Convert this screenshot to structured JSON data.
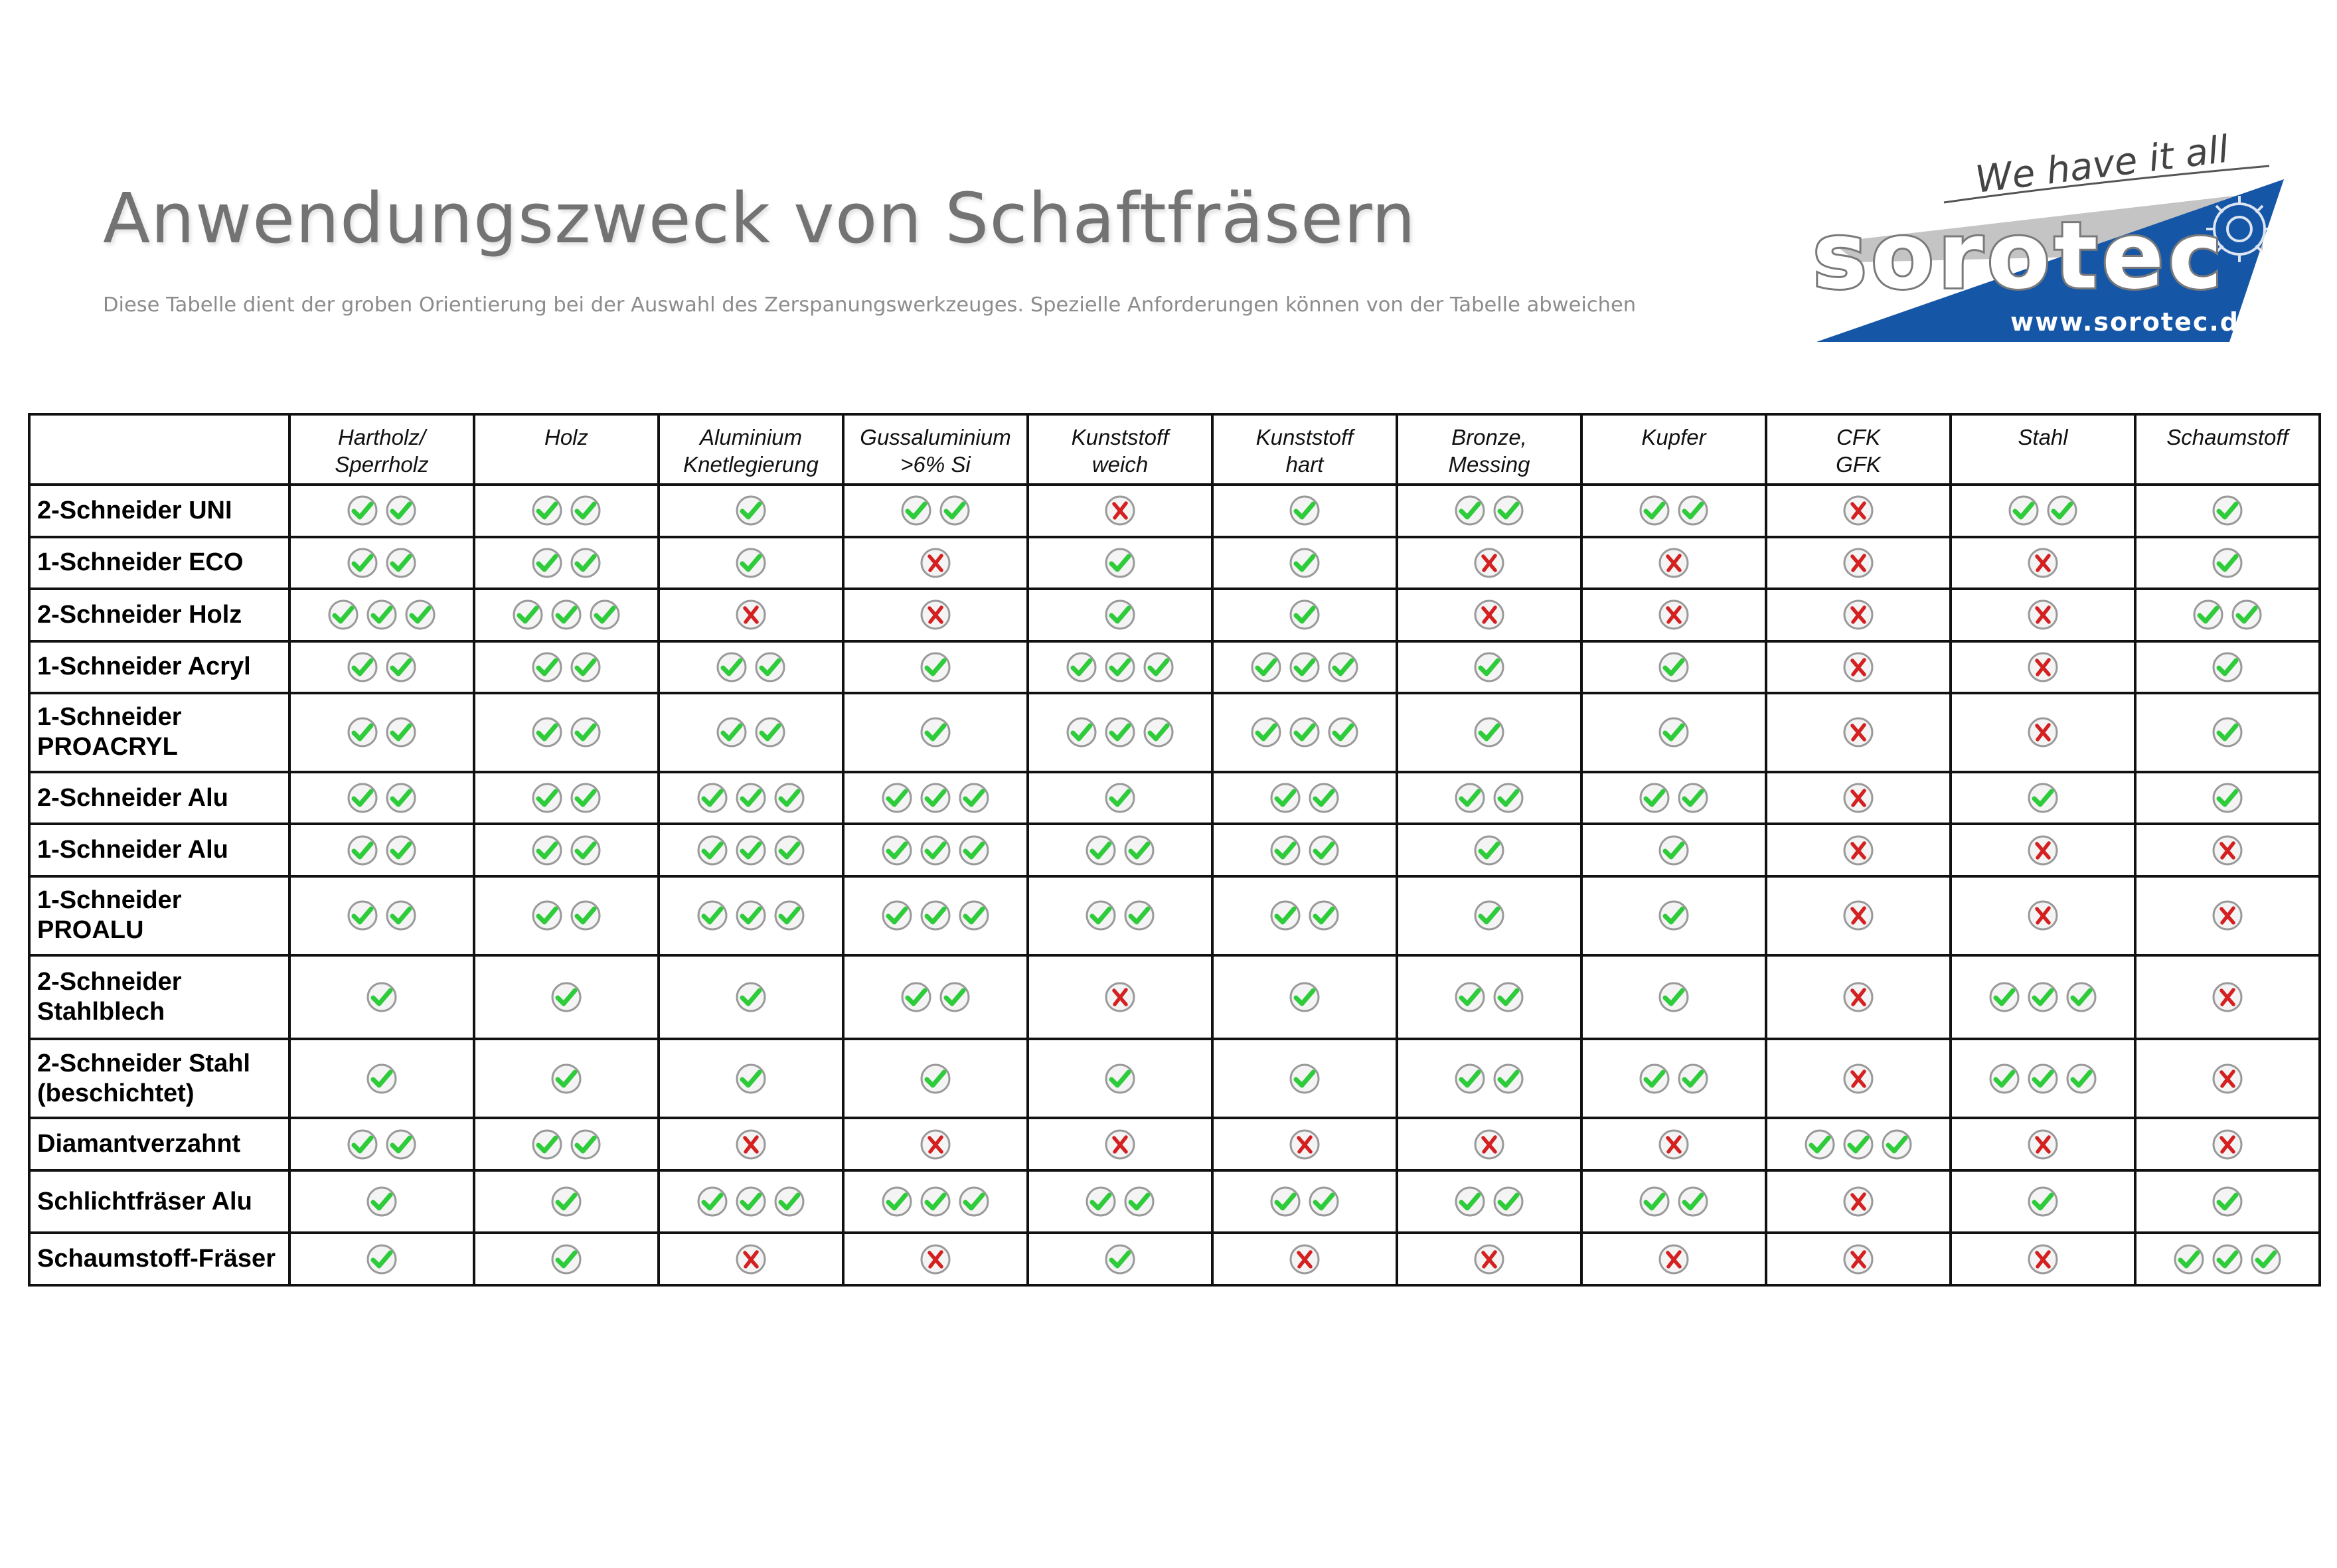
{
  "header": {
    "title": "Anwendungszweck von Schaftfräsern",
    "subtitle": "Diese Tabelle dient der groben Orientierung bei der Auswahl des Zerspanungswerkzeuges. Spezielle Anforderungen können von der Tabelle abweichen"
  },
  "logo": {
    "slogan": "We have it all",
    "brand": "sorotec",
    "url": "www.sorotec.de",
    "colors": {
      "blue": "#1656a6",
      "gray": "#bdbdbd"
    }
  },
  "colors": {
    "check": "#2ecc3a",
    "cross": "#d42020",
    "icon_ring": "#9a9a9a",
    "border": "#111111"
  },
  "table": {
    "columns": [
      "Hartholz/\nSperrholz",
      "Holz",
      "Aluminium\nKnetlegierung",
      "Gussaluminium\n>6% Si",
      "Kunststoff\nweich",
      "Kunststoff\nhart",
      "Bronze,\nMessing",
      "Kupfer",
      "CFK\nGFK",
      "Stahl",
      "Schaumstoff"
    ],
    "rows": [
      {
        "label": "2-Schneider UNI",
        "ratings": [
          2,
          2,
          1,
          2,
          0,
          1,
          2,
          2,
          0,
          2,
          1
        ]
      },
      {
        "label": "1-Schneider ECO",
        "ratings": [
          2,
          2,
          1,
          0,
          1,
          1,
          0,
          0,
          0,
          0,
          1
        ]
      },
      {
        "label": "2-Schneider Holz",
        "ratings": [
          3,
          3,
          0,
          0,
          1,
          1,
          0,
          0,
          0,
          0,
          2
        ]
      },
      {
        "label": "1-Schneider Acryl",
        "ratings": [
          2,
          2,
          2,
          1,
          3,
          3,
          1,
          1,
          0,
          0,
          1
        ]
      },
      {
        "label": "1-Schneider\nPROACRYL",
        "ratings": [
          2,
          2,
          2,
          1,
          3,
          3,
          1,
          1,
          0,
          0,
          1
        ]
      },
      {
        "label": "2-Schneider Alu",
        "ratings": [
          2,
          2,
          3,
          3,
          1,
          2,
          2,
          2,
          0,
          1,
          1
        ]
      },
      {
        "label": "1-Schneider Alu",
        "ratings": [
          2,
          2,
          3,
          3,
          2,
          2,
          1,
          1,
          0,
          0,
          0
        ]
      },
      {
        "label": "1-Schneider\nPROALU",
        "ratings": [
          2,
          2,
          3,
          3,
          2,
          2,
          1,
          1,
          0,
          0,
          0
        ]
      },
      {
        "label": "2-Schneider\nStahlblech",
        "ratings": [
          1,
          1,
          1,
          2,
          0,
          1,
          2,
          1,
          0,
          3,
          0
        ]
      },
      {
        "label": "2-Schneider Stahl\n(beschichtet)",
        "ratings": [
          1,
          1,
          1,
          1,
          1,
          1,
          2,
          2,
          0,
          3,
          0
        ]
      },
      {
        "label": "Diamantverzahnt",
        "ratings": [
          2,
          2,
          0,
          0,
          0,
          0,
          0,
          0,
          3,
          0,
          0
        ]
      },
      {
        "label": "Schlichtfräser Alu",
        "ratings": [
          1,
          1,
          3,
          3,
          2,
          2,
          2,
          2,
          0,
          1,
          1
        ]
      },
      {
        "label": "Schaumstoff-Fräser",
        "ratings": [
          1,
          1,
          0,
          0,
          1,
          0,
          0,
          0,
          0,
          0,
          3
        ]
      }
    ]
  }
}
